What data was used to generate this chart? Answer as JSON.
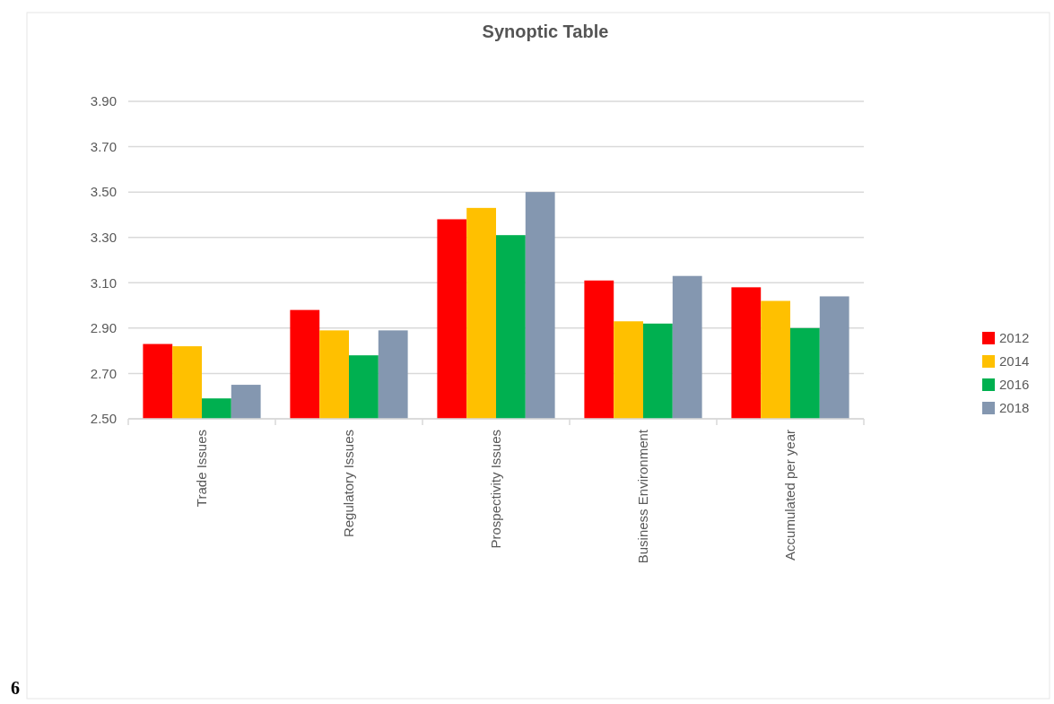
{
  "chart_data": {
    "type": "bar",
    "title": "Synoptic Table",
    "categories": [
      "Trade Issues",
      "Regulatory Issues",
      "Prospectivity Issues",
      "Business Environment",
      "Accumulated per year"
    ],
    "series": [
      {
        "name": "2012",
        "color": "#ff0000",
        "values": [
          2.83,
          2.98,
          3.38,
          3.11,
          3.08
        ]
      },
      {
        "name": "2014",
        "color": "#ffc000",
        "values": [
          2.82,
          2.89,
          3.43,
          2.93,
          3.02
        ]
      },
      {
        "name": "2016",
        "color": "#00b050",
        "values": [
          2.59,
          2.78,
          3.31,
          2.92,
          2.9
        ]
      },
      {
        "name": "2018",
        "color": "#8497b0",
        "values": [
          2.65,
          2.89,
          3.5,
          3.13,
          3.04
        ]
      }
    ],
    "ylim": [
      2.5,
      3.9
    ],
    "yticks": [
      {
        "value": 2.5,
        "label": "2.50"
      },
      {
        "value": 2.7,
        "label": "2.70"
      },
      {
        "value": 2.9,
        "label": "2.90"
      },
      {
        "value": 3.1,
        "label": "3.10"
      },
      {
        "value": 3.3,
        "label": "3.30"
      },
      {
        "value": 3.5,
        "label": "3.50"
      },
      {
        "value": 3.7,
        "label": "3.70"
      },
      {
        "value": 3.9,
        "label": "3.90"
      }
    ],
    "grid": "y",
    "legend": "right",
    "annotations": [
      "6"
    ]
  }
}
